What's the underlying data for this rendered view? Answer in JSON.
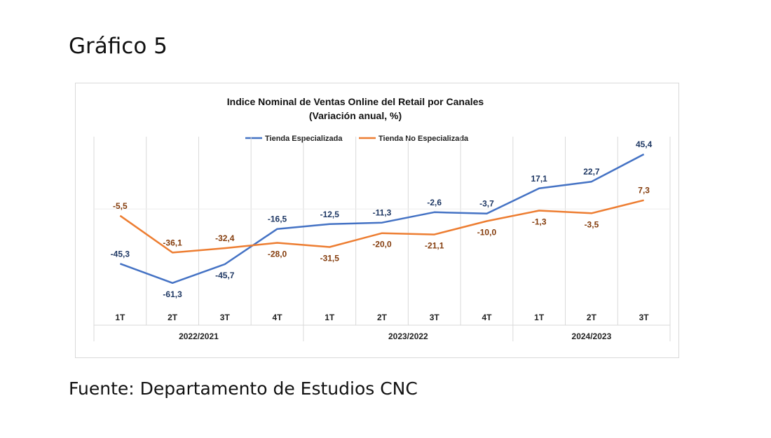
{
  "page": {
    "heading": "Gráfico 5",
    "source": "Fuente: Departamento de Estudios CNC"
  },
  "colors": {
    "series1": "#4472C4",
    "series1_label": "#1F3864",
    "series2": "#ED7D31",
    "series2_label": "#843C0C",
    "grid": "#d9d9d9"
  },
  "chart_data": {
    "type": "line",
    "title_lines": [
      "Indice Nominal de Ventas Online del Retail por Canales",
      "(Variación  anual, %)"
    ],
    "categories": [
      "1T",
      "2T",
      "3T",
      "4T",
      "1T",
      "2T",
      "3T",
      "4T",
      "1T",
      "2T",
      "3T"
    ],
    "groups": [
      {
        "label": "2022/2021",
        "count": 4
      },
      {
        "label": "2023/2022",
        "count": 4
      },
      {
        "label": "2024/2023",
        "count": 3
      }
    ],
    "series": [
      {
        "name": "Tienda Especializada",
        "values": [
          -45.3,
          -61.3,
          -45.7,
          -16.5,
          -12.5,
          -11.3,
          -2.6,
          -3.7,
          17.1,
          22.7,
          45.4
        ],
        "labels": [
          "-45,3",
          "-61,3",
          "-45,7",
          "-16,5",
          "-12,5",
          "-11,3",
          "-2,6",
          "-3,7",
          "17,1",
          "22,7",
          "45,4"
        ]
      },
      {
        "name": "Tienda No Especializada",
        "values": [
          -5.5,
          -36.1,
          -32.4,
          -28.0,
          -31.5,
          -20.0,
          -21.1,
          -10.0,
          -1.3,
          -3.5,
          7.3
        ],
        "labels": [
          "-5,5",
          "-36,1",
          "-32,4",
          "-28,0",
          "-31,5",
          "-20,0",
          "-21,1",
          "-10,0",
          "-1,3",
          "-3,5",
          "7,3"
        ]
      }
    ],
    "ylim": [
      -80,
      60
    ],
    "legend_position": "top-center"
  }
}
